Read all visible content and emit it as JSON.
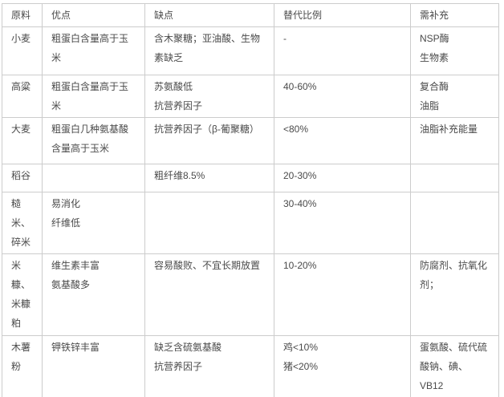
{
  "colors": {
    "text": "#4a4a4a",
    "border": "#cccccc",
    "background": "#ffffff"
  },
  "table": {
    "columns": [
      {
        "key": "material",
        "label": "原料"
      },
      {
        "key": "pros",
        "label": "优点"
      },
      {
        "key": "cons",
        "label": "缺点"
      },
      {
        "key": "ratio",
        "label": "替代比例"
      },
      {
        "key": "supplement",
        "label": "需补充"
      }
    ],
    "rows": [
      {
        "material": [
          "小麦"
        ],
        "pros": [
          "粗蛋白含量高于玉米"
        ],
        "cons": [
          "含木聚糖；亚油酸、生物素缺乏"
        ],
        "ratio": [
          "-"
        ],
        "supplement": [
          "NSP酶",
          "生物素"
        ]
      },
      {
        "material": [
          "高粱"
        ],
        "pros": [
          "粗蛋白含量高于玉米"
        ],
        "cons": [
          "苏氨酸低",
          "抗营养因子"
        ],
        "ratio": [
          "40-60%"
        ],
        "supplement": [
          "复合酶",
          "油脂"
        ]
      },
      {
        "material": [
          "大麦"
        ],
        "pros": [
          "粗蛋白几种氨基酸含量高于玉米"
        ],
        "cons": [
          "抗营养因子（β-葡聚糖）"
        ],
        "ratio": [
          "<80%"
        ],
        "supplement": [
          "油脂补充能量"
        ]
      },
      {
        "material": [
          "稻谷"
        ],
        "pros": [],
        "cons": [
          "粗纤维8.5%"
        ],
        "ratio": [
          "20-30%"
        ],
        "supplement": []
      },
      {
        "material": [
          "糙米、碎米"
        ],
        "pros": [
          "易消化",
          "纤维低"
        ],
        "cons": [],
        "ratio": [
          "30-40%"
        ],
        "supplement": []
      },
      {
        "material": [
          "米糠、米糠粕"
        ],
        "pros": [
          "维生素丰富",
          "氨基酸多"
        ],
        "cons": [
          "容易酸败、不宜长期放置"
        ],
        "ratio": [
          "10-20%"
        ],
        "supplement": [
          "防腐剂、抗氧化剂；"
        ]
      },
      {
        "material": [
          "木薯粉"
        ],
        "pros": [
          "钾铁锌丰富"
        ],
        "cons": [
          "缺乏含硫氨基酸",
          "抗营养因子"
        ],
        "ratio": [
          "鸡<10%",
          "猪<20%"
        ],
        "supplement": [
          "蛋氨酸、硫代硫酸钠、碘、VB12"
        ]
      }
    ]
  }
}
